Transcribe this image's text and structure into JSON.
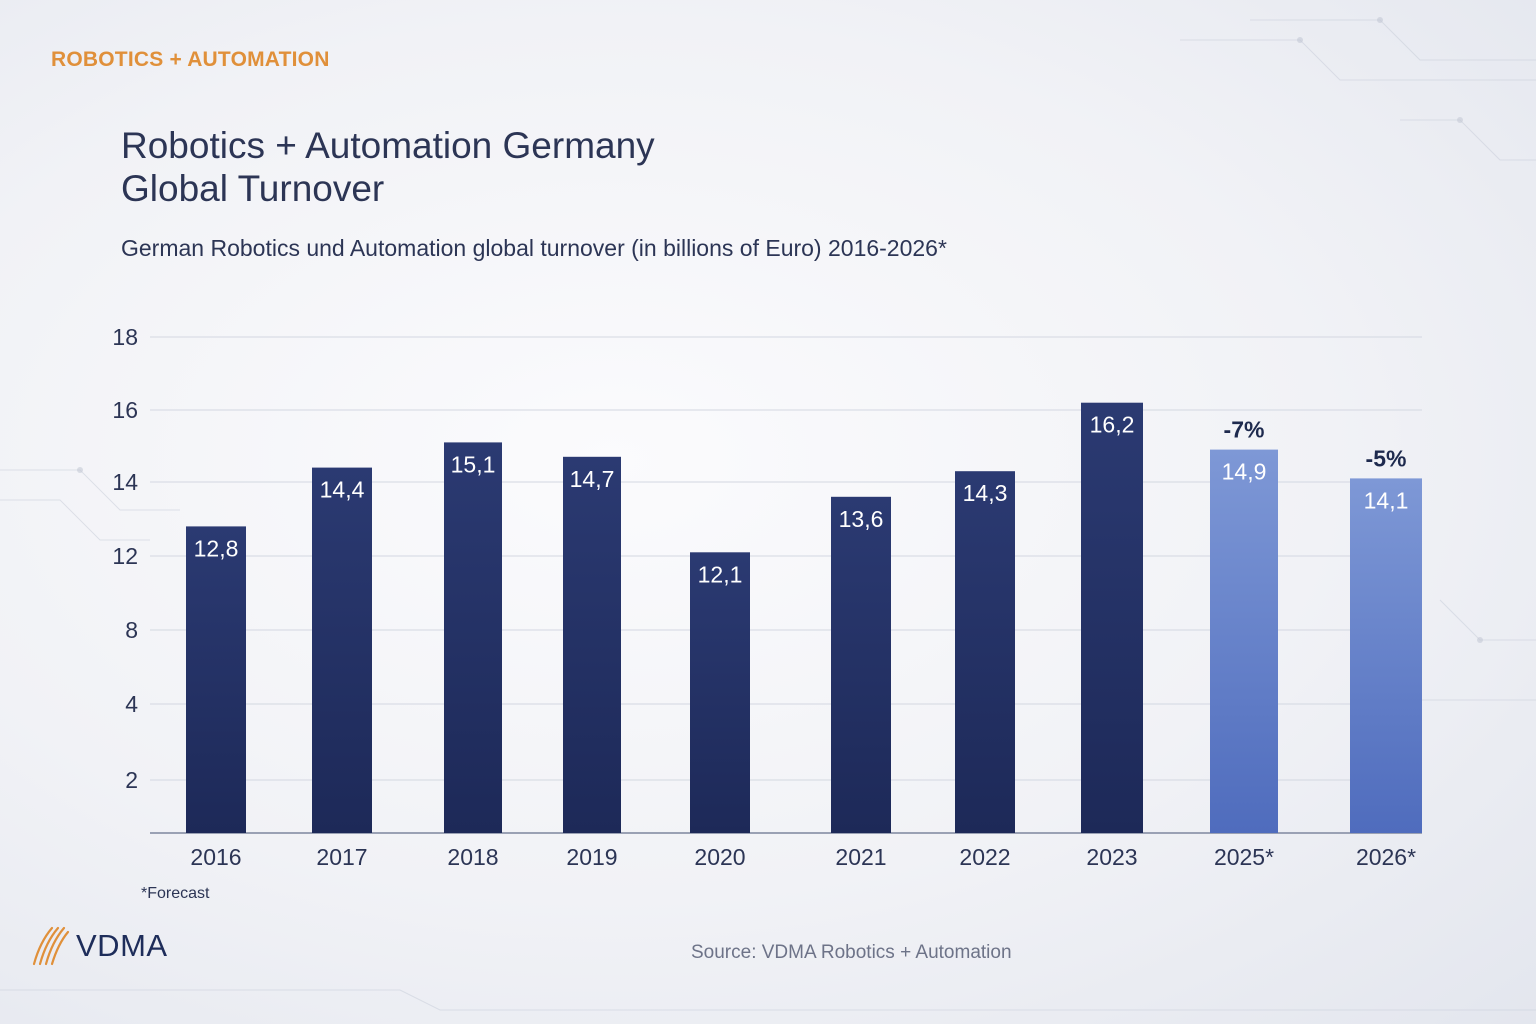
{
  "header": {
    "tagline": "ROBOTICS + AUTOMATION",
    "title_line1": "Robotics + Automation Germany",
    "title_line2": "Global Turnover",
    "subtitle": "German Robotics und Automation global turnover (in billions of Euro) 2016-2026*"
  },
  "footer": {
    "footnote": "*Forecast",
    "logo_text": "VDMA",
    "source": "Source: VDMA Robotics + Automation"
  },
  "colors": {
    "actual_bar": "#253468",
    "forecast_bar": "#6a86c9",
    "accent": "#e0903a",
    "text": "#2c3555"
  },
  "chart_data": {
    "type": "bar",
    "categories": [
      "2016",
      "2017",
      "2018",
      "2019",
      "2020",
      "2021",
      "2022",
      "2023",
      "2025*",
      "2026*"
    ],
    "values": [
      12.8,
      14.4,
      15.1,
      14.7,
      12.1,
      13.6,
      14.3,
      16.2,
      14.9,
      14.1
    ],
    "value_labels": [
      "12,8",
      "14,4",
      "15,1",
      "14,7",
      "12,1",
      "13,6",
      "14,3",
      "16,2",
      "14,9",
      "14,1"
    ],
    "forecast": [
      false,
      false,
      false,
      false,
      false,
      false,
      false,
      false,
      true,
      true
    ],
    "change_labels": [
      "",
      "",
      "",
      "",
      "",
      "",
      "",
      "",
      "-7%",
      "-5%"
    ],
    "y_ticks": [
      2,
      4,
      8,
      12,
      14,
      16,
      18
    ],
    "grid": true,
    "legend": "none",
    "xlabel": "",
    "ylabel": ""
  }
}
